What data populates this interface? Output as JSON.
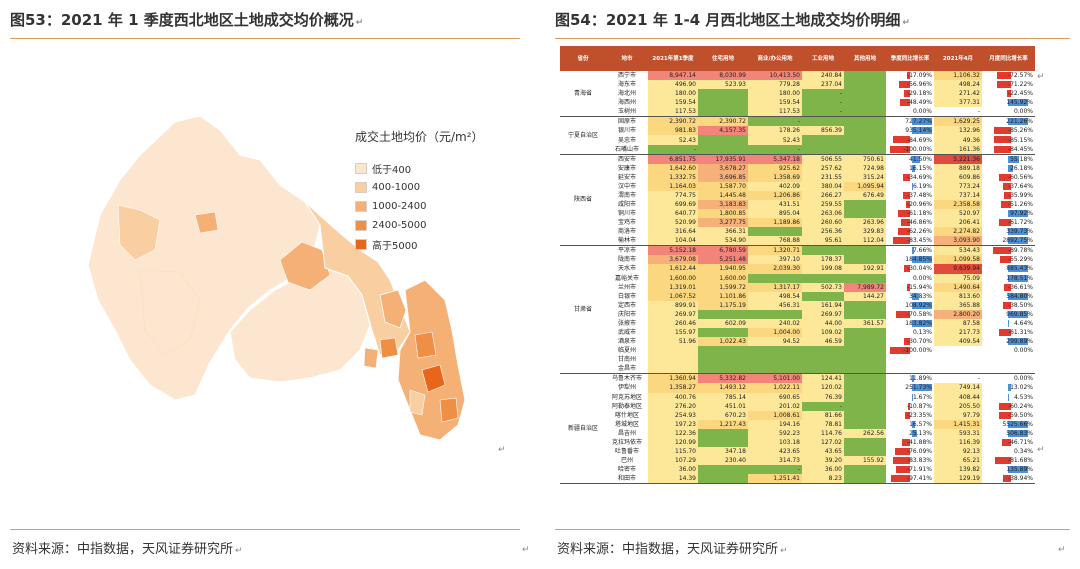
{
  "left": {
    "title": "图53：2021 年 1 季度西北地区土地成交均价概况",
    "legend_title": "成交土地均价（元/m²）",
    "legend": [
      {
        "label": "低于400",
        "color": "#fce6cf"
      },
      {
        "label": "400-1000",
        "color": "#f9cfa2"
      },
      {
        "label": "1000-2400",
        "color": "#f4b075"
      },
      {
        "label": "2400-5000",
        "color": "#ef8f46"
      },
      {
        "label": "高于5000",
        "color": "#e86519"
      }
    ],
    "source": "资料来源：中指数据，天风证券研究所"
  },
  "right": {
    "title": "图54：2021 年 1-4 月西北地区土地成交均价明细",
    "source": "资料来源：中指数据，天风证券研究所",
    "headers": [
      "省份",
      "地市",
      "2021年第1季度",
      "住宅用地",
      "商业/办公用地",
      "工业用地",
      "其他用地",
      "季度同比增长率",
      "2021年4月",
      "月度同比增长率"
    ],
    "rows": [
      {
        "prov": "青海省",
        "span": 5,
        "city": "西宁市",
        "q1": "8,947.14",
        "res": "8,030.99",
        "com": "10,413.50",
        "ind": "240.84",
        "oth": "",
        "qy": "-17.09%",
        "apr": "1,106.32",
        "my": "-72.57%"
      },
      {
        "city": "海东市",
        "q1": "496.90",
        "res": "523.93",
        "com": "779.28",
        "ind": "237.04",
        "oth": "",
        "qy": "-56.96%",
        "apr": "498.24",
        "my": "-71.22%"
      },
      {
        "city": "海北州",
        "q1": "180.00",
        "res": "",
        "com": "180.00",
        "ind": "-",
        "oth": "",
        "qy": "-29.18%",
        "apr": "271.42",
        "my": "-22.45%"
      },
      {
        "city": "海西州",
        "q1": "159.54",
        "res": "",
        "com": "159.54",
        "ind": "-",
        "oth": "",
        "qy": "-48.49%",
        "apr": "377.31",
        "my": "145.92%"
      },
      {
        "city": "玉树州",
        "q1": "117.53",
        "res": "",
        "com": "117.53",
        "ind": "-",
        "oth": "",
        "qy": "0.00%",
        "apr": "-",
        "my": "0.00%"
      },
      {
        "prov": "宁夏自治区",
        "span": 4,
        "city": "固原市",
        "q1": "2,390.72",
        "res": "2,390.72",
        "com": "-",
        "ind": "",
        "oth": "",
        "qy": "727.27%",
        "apr": "1,629.25",
        "my": "221.26%"
      },
      {
        "city": "银川市",
        "q1": "981.83",
        "res": "4,157.35",
        "com": "178.26",
        "ind": "856.39",
        "oth": "",
        "qy": "935.14%",
        "apr": "132.96",
        "my": "-85.26%"
      },
      {
        "city": "吴忠市",
        "q1": "52.43",
        "res": "",
        "com": "52.43",
        "ind": "",
        "oth": "",
        "qy": "-84.69%",
        "apr": "49.36",
        "my": "-85.15%"
      },
      {
        "city": "石嘴山市",
        "q1": "-",
        "res": "",
        "com": "-",
        "ind": "",
        "oth": "",
        "qy": "-100.00%",
        "apr": "161.36",
        "my": "-84.45%"
      },
      {
        "prov": "陕西省",
        "span": 10,
        "city": "西安市",
        "q1": "6,851.75",
        "res": "17,935.91",
        "com": "5,347.18",
        "ind": "506.55",
        "oth": "750.61",
        "qy": "41.50%",
        "apr": "5,221.36",
        "my": "55.18%"
      },
      {
        "city": "安康市",
        "q1": "1,642.60",
        "res": "3,678.27",
        "com": "925.62",
        "ind": "257.62",
        "oth": "724.98",
        "qy": "16.15%",
        "apr": "889.18",
        "my": "26.18%"
      },
      {
        "city": "延安市",
        "q1": "1,332.75",
        "res": "3,696.85",
        "com": "1,358.69",
        "ind": "231.55",
        "oth": "315.24",
        "qy": "-34.69%",
        "apr": "609.86",
        "my": "-60.56%"
      },
      {
        "city": "汉中市",
        "q1": "1,164.03",
        "res": "1,587.70",
        "com": "402.09",
        "ind": "380.04",
        "oth": "1,095.94",
        "qy": "6.19%",
        "apr": "773.24",
        "my": "-37.64%"
      },
      {
        "city": "渭南市",
        "q1": "774.75",
        "res": "1,445.48",
        "com": "1,206.86",
        "ind": "266.27",
        "oth": "676.49",
        "qy": "-37.48%",
        "apr": "737.14",
        "my": "-35.99%"
      },
      {
        "city": "咸阳市",
        "q1": "699.69",
        "res": "3,183.83",
        "com": "431.51",
        "ind": "259.55",
        "oth": "",
        "qy": "-20.96%",
        "apr": "2,358.58",
        "my": "-51.26%"
      },
      {
        "city": "铜川市",
        "q1": "640.77",
        "res": "1,800.85",
        "com": "895.04",
        "ind": "263.06",
        "oth": "",
        "qy": "-61.18%",
        "apr": "520.97",
        "my": "97.92%"
      },
      {
        "city": "宝鸡市",
        "q1": "520.99",
        "res": "3,277.75",
        "com": "1,189.86",
        "ind": "260.60",
        "oth": "263.96",
        "qy": "-46.86%",
        "apr": "206.41",
        "my": "-61.72%"
      },
      {
        "city": "商洛市",
        "q1": "316.64",
        "res": "366.31",
        "com": "",
        "ind": "256.36",
        "oth": "329.83",
        "qy": "-62.26%",
        "apr": "2,274.82",
        "my": "339.73%"
      },
      {
        "city": "榆林市",
        "q1": "104.04",
        "res": "534.90",
        "com": "768.88",
        "ind": "95.61",
        "oth": "112.04",
        "qy": "-83.45%",
        "apr": "3,093.90",
        "my": "2892.75%"
      },
      {
        "prov": "甘肃省",
        "span": 14,
        "city": "平凉市",
        "q1": "5,152.18",
        "res": "6,780.59",
        "com": "1,320.71",
        "ind": "",
        "oth": "",
        "qy": "7.66%",
        "apr": "534.43",
        "my": "-89.78%"
      },
      {
        "city": "陇南市",
        "q1": "3,679.08",
        "res": "5,251.48",
        "com": "397.10",
        "ind": "178.37",
        "oth": "",
        "qy": "184.85%",
        "apr": "1,099.58",
        "my": "-55.29%"
      },
      {
        "city": "天水市",
        "q1": "1,612.44",
        "res": "1,940.95",
        "com": "2,039.30",
        "ind": "199.08",
        "oth": "192.91",
        "qy": "-30.04%",
        "apr": "9,639.94",
        "my": "885.43%"
      },
      {
        "city": "嘉峪关市",
        "q1": "1,600.00",
        "res": "1,600.00",
        "com": "",
        "ind": "",
        "oth": "",
        "qy": "0.00%",
        "apr": "75.09",
        "my": "178.51%"
      },
      {
        "city": "兰州市",
        "q1": "1,319.01",
        "res": "1,599.72",
        "com": "1,317.17",
        "ind": "502.73",
        "oth": "7,989.72",
        "qy": "-15.94%",
        "apr": "1,490.64",
        "my": "-36.61%"
      },
      {
        "city": "白银市",
        "q1": "1,067.52",
        "res": "1,101.86",
        "com": "498.54",
        "ind": "",
        "oth": "144.27",
        "qy": "34.83%",
        "apr": "813.60",
        "my": "584.80%"
      },
      {
        "city": "定西市",
        "q1": "899.91",
        "res": "1,175.19",
        "com": "456.31",
        "ind": "161.94",
        "oth": "",
        "qy": "108.92%",
        "apr": "365.88",
        "my": "-38.50%"
      },
      {
        "city": "庆阳市",
        "q1": "269.97",
        "res": "",
        "com": "",
        "ind": "269.97",
        "oth": "",
        "qy": "-70.58%",
        "apr": "2,800.20",
        "my": "969.85%"
      },
      {
        "city": "张掖市",
        "q1": "260.46",
        "res": "602.09",
        "com": "240.02",
        "ind": "44.00",
        "oth": "361.57",
        "qy": "183.82%",
        "apr": "87.58",
        "my": "4.64%"
      },
      {
        "city": "武威市",
        "q1": "155.97",
        "res": "",
        "com": "1,004.00",
        "ind": "109.02",
        "oth": "",
        "qy": "0.13%",
        "apr": "217.73",
        "my": "-61.31%"
      },
      {
        "city": "酒泉市",
        "q1": "51.96",
        "res": "1,022.43",
        "com": "94.52",
        "ind": "46.59",
        "oth": "",
        "qy": "-30.70%",
        "apr": "409.54",
        "my": "299.89%"
      },
      {
        "city": "临夏州",
        "q1": "",
        "res": "",
        "com": "",
        "ind": "",
        "oth": "",
        "qy": "-100.00%",
        "apr": "",
        "my": "0.00%"
      },
      {
        "city": "甘南州",
        "q1": "",
        "res": "",
        "com": "",
        "ind": "",
        "oth": "",
        "qy": "",
        "apr": "",
        "my": ""
      },
      {
        "city": "金昌市",
        "q1": "",
        "res": "",
        "com": "",
        "ind": "",
        "oth": "",
        "qy": "",
        "apr": "",
        "my": ""
      },
      {
        "prov": "新疆自治区",
        "span": 13,
        "city": "乌鲁木齐市",
        "q1": "1,360.94",
        "res": "5,332.82",
        "com": "5,101.00",
        "ind": "124.41",
        "oth": "",
        "qy": "11.89%",
        "apr": "-",
        "my": "0.00%"
      },
      {
        "city": "伊犁州",
        "q1": "1,358.27",
        "res": "1,493.12",
        "com": "1,022.11",
        "ind": "120.02",
        "oth": "",
        "qy": "251.73%",
        "apr": "749.14",
        "my": "13.02%"
      },
      {
        "city": "阿克苏地区",
        "q1": "400.76",
        "res": "785.14",
        "com": "690.65",
        "ind": "76.39",
        "oth": "",
        "qy": "1.67%",
        "apr": "408.44",
        "my": "4.53%"
      },
      {
        "city": "阿勒泰地区",
        "q1": "276.20",
        "res": "451.01",
        "com": "201.02",
        "ind": "-",
        "oth": "",
        "qy": "-10.87%",
        "apr": "205.50",
        "my": "-60.24%"
      },
      {
        "city": "喀什地区",
        "q1": "254.93",
        "res": "670.23",
        "com": "1,008.61",
        "ind": "81.66",
        "oth": "",
        "qy": "-23.35%",
        "apr": "97.79",
        "my": "-59.50%"
      },
      {
        "city": "塔城地区",
        "q1": "197.23",
        "res": "1,217.43",
        "com": "194.16",
        "ind": "78.81",
        "oth": "",
        "qy": "16.57%",
        "apr": "1,415.31",
        "my": "5525.66%"
      },
      {
        "city": "昌吉州",
        "q1": "122.36",
        "res": "",
        "com": "592.23",
        "ind": "114.76",
        "oth": "262.56",
        "qy": "25.13%",
        "apr": "593.31",
        "my": "506.83%"
      },
      {
        "city": "克拉玛依市",
        "q1": "120.99",
        "res": "",
        "com": "103.18",
        "ind": "127.02",
        "oth": "",
        "qy": "-41.88%",
        "apr": "116.39",
        "my": "-46.71%"
      },
      {
        "city": "吐鲁番市",
        "q1": "115.70",
        "res": "347.18",
        "com": "423.65",
        "ind": "43.65",
        "oth": "",
        "qy": "-76.09%",
        "apr": "92.13",
        "my": "0.34%"
      },
      {
        "city": "巴州",
        "q1": "107.29",
        "res": "230.40",
        "com": "314.73",
        "ind": "39.20",
        "oth": "155.92",
        "qy": "-83.83%",
        "apr": "65.21",
        "my": "-81.68%"
      },
      {
        "city": "哈密市",
        "q1": "36.00",
        "res": "",
        "com": "-",
        "ind": "36.00",
        "oth": "",
        "qy": "-71.91%",
        "apr": "139.82",
        "my": "135.89%"
      },
      {
        "city": "和田市",
        "q1": "14.39",
        "res": "",
        "com": "1,251.41",
        "ind": "8.23",
        "oth": "",
        "qy": "-97.41%",
        "apr": "129.19",
        "my": "-38.94%"
      }
    ]
  }
}
